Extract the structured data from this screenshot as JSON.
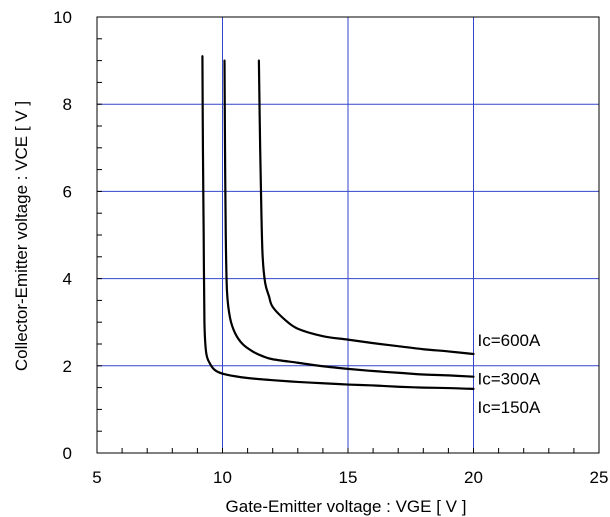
{
  "chart_data": {
    "type": "line",
    "title": "",
    "xlabel": "Gate-Emitter voltage : VGE [ V ]",
    "ylabel": "Collector-Emitter voltage : VCE [ V ]",
    "xlim": [
      5,
      25
    ],
    "ylim": [
      0,
      10
    ],
    "xticks": [
      5,
      10,
      15,
      20,
      25
    ],
    "yticks": [
      0,
      2,
      4,
      6,
      8,
      10
    ],
    "grid": true,
    "colors": {
      "grid": "#3344cc",
      "line": "#000000",
      "axis": "#000000"
    },
    "series": [
      {
        "name": "Ic=600A",
        "label": "Ic=600A",
        "x": [
          11.45,
          11.5,
          11.55,
          11.6,
          11.7,
          11.85,
          12.0,
          12.5,
          13.0,
          14.0,
          15.0,
          16.0,
          17.0,
          18.0,
          19.0,
          20.0
        ],
        "y": [
          9.0,
          7.0,
          5.5,
          4.5,
          3.9,
          3.6,
          3.35,
          3.05,
          2.85,
          2.68,
          2.6,
          2.52,
          2.45,
          2.38,
          2.33,
          2.27
        ]
      },
      {
        "name": "Ic=300A",
        "label": "Ic=300A",
        "x": [
          10.08,
          10.1,
          10.13,
          10.18,
          10.3,
          10.5,
          10.8,
          11.2,
          11.6,
          12.0,
          13.0,
          14.0,
          15.0,
          16.0,
          17.0,
          18.0,
          19.0,
          20.0
        ],
        "y": [
          9.0,
          7.0,
          5.0,
          3.7,
          3.1,
          2.75,
          2.5,
          2.33,
          2.22,
          2.15,
          2.07,
          1.99,
          1.93,
          1.88,
          1.84,
          1.8,
          1.78,
          1.75
        ]
      },
      {
        "name": "Ic=150A",
        "label": "Ic=150A",
        "x": [
          9.2,
          9.22,
          9.25,
          9.28,
          9.35,
          9.5,
          9.7,
          10.0,
          10.5,
          11.0,
          12.0,
          13.0,
          14.0,
          15.0,
          16.0,
          17.0,
          18.0,
          19.0,
          20.0
        ],
        "y": [
          9.1,
          7.0,
          5.0,
          3.0,
          2.3,
          2.05,
          1.9,
          1.82,
          1.76,
          1.72,
          1.67,
          1.63,
          1.6,
          1.57,
          1.55,
          1.52,
          1.5,
          1.49,
          1.47
        ]
      }
    ]
  }
}
